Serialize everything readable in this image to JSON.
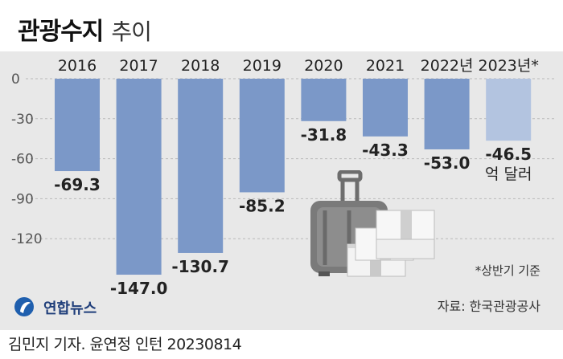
{
  "header": {
    "title": "관광수지",
    "subtitle": "추이"
  },
  "chart_data": {
    "type": "bar",
    "categories": [
      "2016",
      "2017",
      "2018",
      "2019",
      "2020",
      "2021",
      "2022년",
      "2023년*"
    ],
    "values": [
      -69.3,
      -147.0,
      -130.7,
      -85.2,
      -31.8,
      -43.3,
      -53.0,
      -46.5
    ],
    "value_labels": [
      "-69.3",
      "-147.0",
      "-130.7",
      "-85.2",
      "-31.8",
      "-43.3",
      "-53.0",
      "-46.5"
    ],
    "unit_label": "억 달러",
    "y_ticks": [
      "0",
      "-30",
      "-60",
      "-90",
      "-120"
    ],
    "y_tick_values": [
      0,
      -30,
      -60,
      -90,
      -120
    ],
    "ylim": [
      -150,
      0
    ],
    "colors": {
      "bar": "#7b98c8",
      "bar_highlight": "#b3c4e0",
      "panel": "#e8e8e8",
      "grid": "#b9b9b9"
    }
  },
  "footnote": "*상반기 기준",
  "source": "자료: 한국관광공사",
  "logo": {
    "text": "연합뉴스",
    "icon": "yonhap-logo-icon"
  },
  "credit": "김민지 기자. 윤연정 인턴  20230814"
}
